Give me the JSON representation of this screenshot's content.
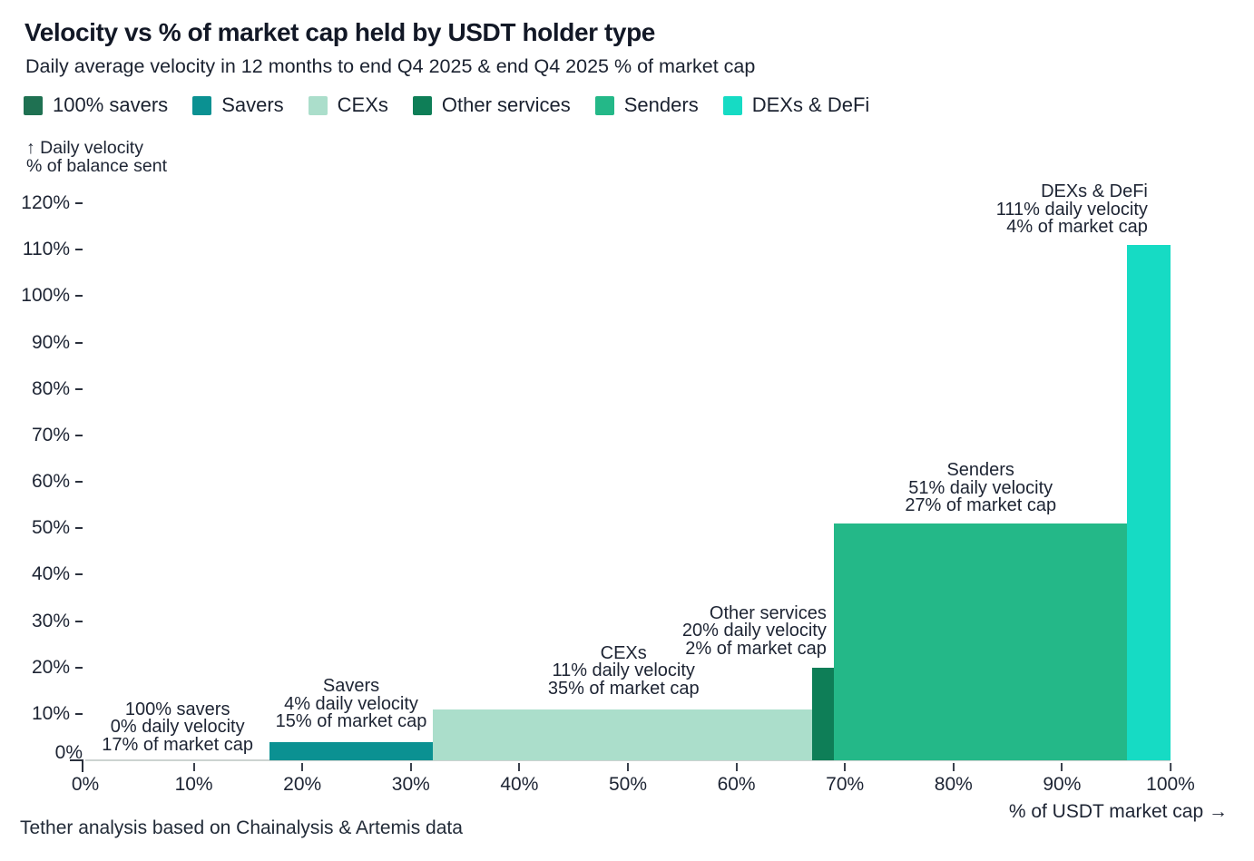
{
  "chart_data": {
    "type": "bar",
    "variant": "variable-width-marimekko",
    "title": "Velocity vs % of market cap held by USDT holder type",
    "subtitle": "Daily average velocity in 12 months to end Q4 2025 & end Q4 2025 % of market cap",
    "legend_position": "top",
    "grid": "off",
    "x_axis": {
      "label": "% of USDT market cap →",
      "min": 0,
      "max": 100,
      "tick_step": 10,
      "tick_suffix": "%"
    },
    "y_axis": {
      "label_line1": "↑ Daily velocity",
      "label_line2": "% of balance sent",
      "min": 0,
      "max": 120,
      "tick_step": 10,
      "tick_suffix": "%"
    },
    "segments": [
      {
        "name": "100% savers",
        "daily_velocity_pct": 0,
        "market_cap_pct": 17,
        "x_start_pct": 0,
        "x_end_pct": 17,
        "color": "#1f7152",
        "annotation_lines": [
          "100% savers",
          "0% daily velocity",
          "17% of market cap"
        ],
        "annotation_anchor": "center",
        "annotation_x_pct": 8.5,
        "annotation_bottom_vel": 1.3
      },
      {
        "name": "Savers",
        "daily_velocity_pct": 4,
        "market_cap_pct": 15,
        "x_start_pct": 17,
        "x_end_pct": 32,
        "color": "#0b9192",
        "annotation_lines": [
          "Savers",
          "4% daily velocity",
          "15% of market cap"
        ],
        "annotation_anchor": "center",
        "annotation_x_pct": 24.5,
        "annotation_bottom_vel": 6.3
      },
      {
        "name": "CEXs",
        "daily_velocity_pct": 11,
        "market_cap_pct": 35,
        "x_start_pct": 32,
        "x_end_pct": 67,
        "color": "#abdecb",
        "annotation_lines": [
          "CEXs",
          "11% daily velocity",
          "35% of market cap"
        ],
        "annotation_anchor": "center",
        "annotation_x_pct": 49.6,
        "annotation_bottom_vel": 13.4
      },
      {
        "name": "Other services",
        "daily_velocity_pct": 20,
        "market_cap_pct": 2,
        "x_start_pct": 67,
        "x_end_pct": 69,
        "color": "#0e7e57",
        "annotation_lines": [
          "Other services",
          "20% daily velocity",
          "2% of market cap"
        ],
        "annotation_anchor": "right",
        "annotation_x_pct": 68.3,
        "annotation_bottom_vel": 22.0
      },
      {
        "name": "Senders",
        "daily_velocity_pct": 51,
        "market_cap_pct": 27,
        "x_start_pct": 69,
        "x_end_pct": 96,
        "color": "#24b888",
        "annotation_lines": [
          "Senders",
          "51% daily velocity",
          "27% of market cap"
        ],
        "annotation_anchor": "center",
        "annotation_x_pct": 82.5,
        "annotation_bottom_vel": 52.8
      },
      {
        "name": "DEXs & DeFi",
        "daily_velocity_pct": 111,
        "market_cap_pct": 4,
        "x_start_pct": 96,
        "x_end_pct": 100,
        "color": "#16dbc4",
        "annotation_lines": [
          "DEXs & DeFi",
          "111% daily velocity",
          "4% of market cap"
        ],
        "annotation_anchor": "right",
        "annotation_x_pct": 97.9,
        "annotation_bottom_vel": 112.8
      }
    ],
    "source_note": "Tether analysis based on Chainalysis & Artemis data"
  }
}
